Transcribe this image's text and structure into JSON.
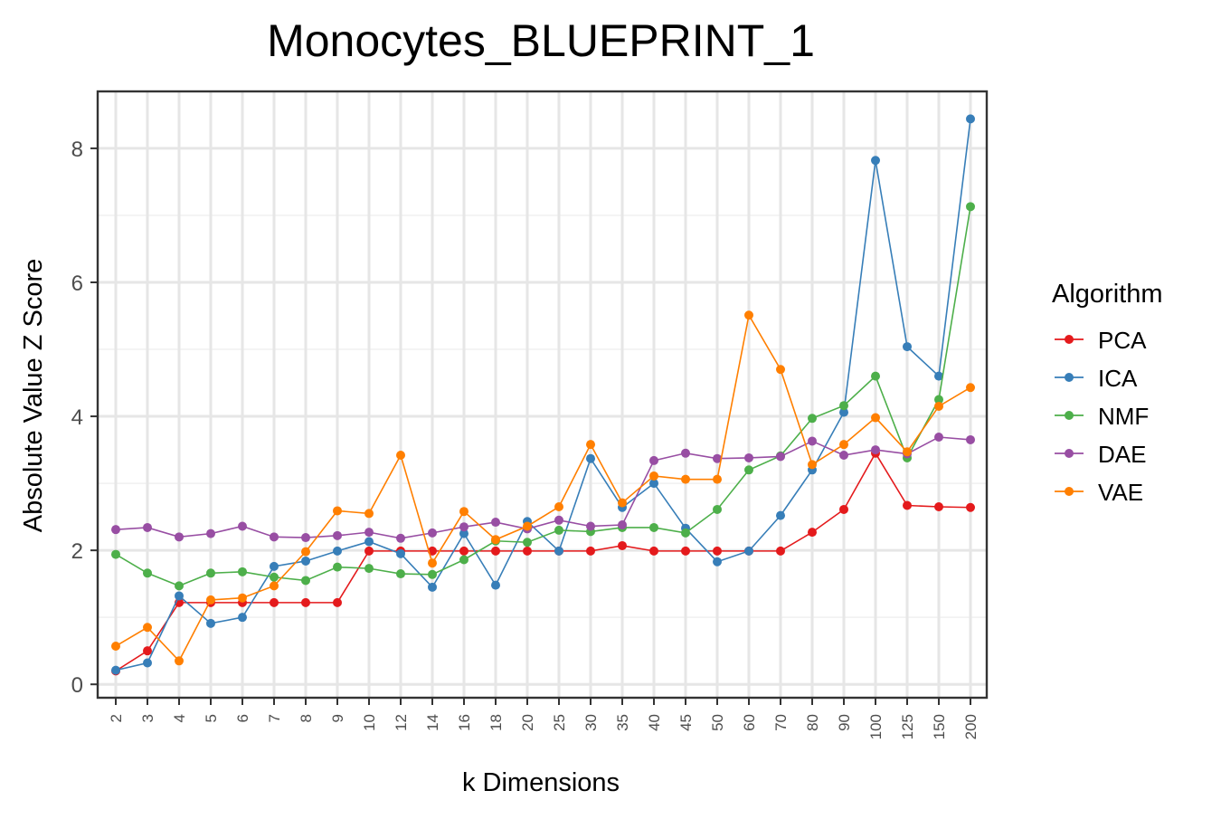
{
  "chart_data": {
    "type": "line",
    "title": "Monocytes_BLUEPRINT_1",
    "xlabel": "k Dimensions",
    "ylabel": "Absolute Value Z Score",
    "categories": [
      "2",
      "3",
      "4",
      "5",
      "6",
      "7",
      "8",
      "9",
      "10",
      "12",
      "14",
      "16",
      "18",
      "20",
      "25",
      "30",
      "35",
      "40",
      "45",
      "50",
      "60",
      "70",
      "80",
      "90",
      "100",
      "125",
      "150",
      "200"
    ],
    "ylim": [
      -0.2,
      8.85
    ],
    "yticks": [
      0,
      2,
      4,
      6,
      8
    ],
    "grid": true,
    "legend": {
      "title": "Algorithm",
      "position": "right"
    },
    "series": [
      {
        "name": "PCA",
        "color": "#e41a1c",
        "values": [
          0.2,
          0.5,
          1.22,
          1.22,
          1.22,
          1.22,
          1.22,
          1.22,
          1.99,
          1.99,
          1.99,
          1.99,
          1.99,
          1.99,
          1.99,
          1.99,
          2.07,
          1.99,
          1.99,
          1.99,
          1.99,
          1.99,
          2.27,
          2.61,
          3.45,
          2.67,
          2.65,
          2.64
        ]
      },
      {
        "name": "ICA",
        "color": "#377eb8",
        "values": [
          0.21,
          0.32,
          1.32,
          0.91,
          1.0,
          1.76,
          1.84,
          1.99,
          2.13,
          1.95,
          1.45,
          2.25,
          1.48,
          2.43,
          1.99,
          3.37,
          2.64,
          3.0,
          2.33,
          1.83,
          1.99,
          2.52,
          3.2,
          4.06,
          7.82,
          5.04,
          4.6,
          8.44
        ]
      },
      {
        "name": "NMF",
        "color": "#4daf4a",
        "values": [
          1.94,
          1.66,
          1.47,
          1.66,
          1.68,
          1.6,
          1.55,
          1.75,
          1.73,
          1.65,
          1.64,
          1.86,
          2.14,
          2.12,
          2.3,
          2.28,
          2.34,
          2.34,
          2.26,
          2.61,
          3.2,
          3.41,
          3.97,
          4.16,
          4.6,
          3.38,
          4.25,
          7.13
        ]
      },
      {
        "name": "DAE",
        "color": "#984ea3",
        "values": [
          2.31,
          2.34,
          2.2,
          2.25,
          2.36,
          2.2,
          2.19,
          2.22,
          2.27,
          2.18,
          2.26,
          2.35,
          2.42,
          2.32,
          2.45,
          2.36,
          2.38,
          3.34,
          3.45,
          3.37,
          3.38,
          3.4,
          3.63,
          3.42,
          3.5,
          3.44,
          3.69,
          3.65
        ]
      },
      {
        "name": "VAE",
        "color": "#ff7f00",
        "values": [
          0.57,
          0.85,
          0.35,
          1.26,
          1.29,
          1.47,
          1.98,
          2.59,
          2.55,
          3.42,
          1.81,
          2.58,
          2.16,
          2.36,
          2.65,
          3.58,
          2.71,
          3.11,
          3.06,
          3.06,
          5.51,
          4.7,
          3.28,
          3.58,
          3.98,
          3.47,
          4.15,
          4.43
        ]
      }
    ]
  }
}
